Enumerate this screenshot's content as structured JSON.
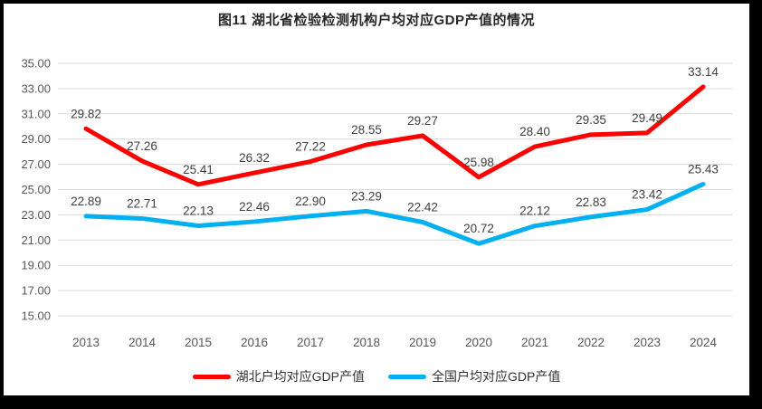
{
  "chart_data": {
    "type": "line",
    "title": "图11  湖北省检验检测机构户均对应GDP产值的情况",
    "categories": [
      "2013",
      "2014",
      "2015",
      "2016",
      "2017",
      "2018",
      "2019",
      "2020",
      "2021",
      "2022",
      "2023",
      "2024"
    ],
    "series": [
      {
        "name": "湖北户均对应GDP产值",
        "color": "#FE0000",
        "values": [
          29.82,
          27.26,
          25.41,
          26.32,
          27.22,
          28.55,
          29.27,
          25.98,
          28.4,
          29.35,
          29.49,
          33.14
        ]
      },
      {
        "name": "全国户均对应GDP产值",
        "color": "#00B0F0",
        "values": [
          22.89,
          22.71,
          22.13,
          22.46,
          22.9,
          23.29,
          22.42,
          20.72,
          22.12,
          22.83,
          23.42,
          25.43
        ]
      }
    ],
    "y_axis": {
      "min": 15,
      "max": 35,
      "step": 2,
      "tick_labels": [
        "35.00",
        "33.00",
        "31.00",
        "29.00",
        "27.00",
        "25.00",
        "23.00",
        "21.00",
        "19.00",
        "17.00",
        "15.00"
      ]
    },
    "grid": true,
    "data_labels": true,
    "legend_position": "bottom"
  },
  "colors": {
    "grid": "#D9D9D9",
    "axis_text": "#595959",
    "label_text": "#404040",
    "title_text": "#262626"
  }
}
